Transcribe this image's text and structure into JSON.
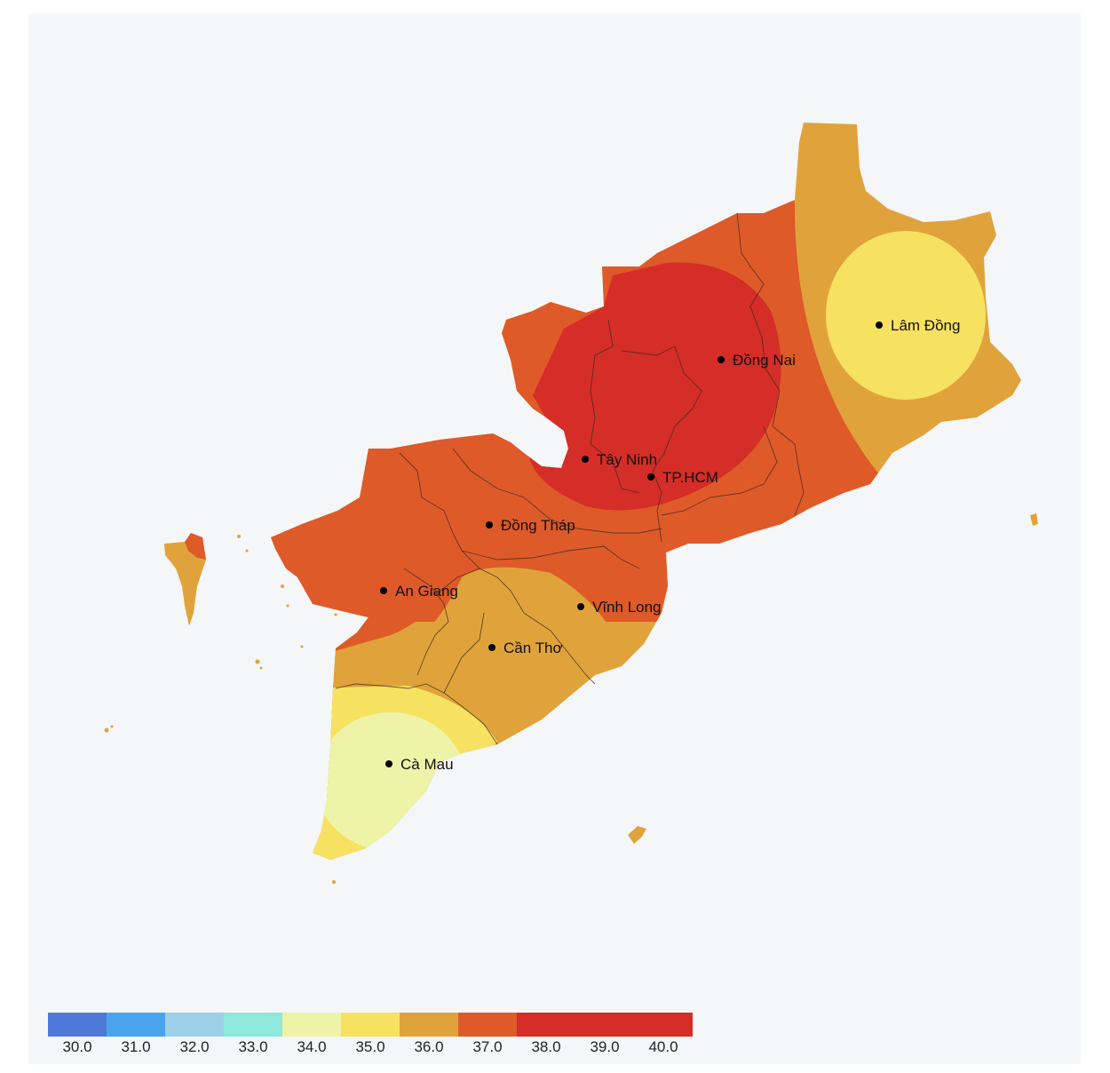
{
  "map": {
    "cities": [
      {
        "id": "lam-dong",
        "name": "Lâm Đồng"
      },
      {
        "id": "dong-nai",
        "name": "Đồng Nai"
      },
      {
        "id": "tay-ninh",
        "name": "Tây Ninh"
      },
      {
        "id": "tphcm",
        "name": "TP.HCM"
      },
      {
        "id": "dong-thap",
        "name": "Đồng Tháp"
      },
      {
        "id": "an-giang",
        "name": "An Giang"
      },
      {
        "id": "vinh-long",
        "name": "Vĩnh Long"
      },
      {
        "id": "can-tho",
        "name": "Cần Thơ"
      },
      {
        "id": "ca-mau",
        "name": "Cà Mau"
      }
    ]
  },
  "legend": {
    "colors": [
      "#4f79d9",
      "#4aa3ef",
      "#9dd0e6",
      "#8ee8dc",
      "#eef3a8",
      "#f7e161",
      "#e0a33b",
      "#de5a29",
      "#d52d27",
      "#d52d27",
      "#d52d27"
    ],
    "ticks": [
      "30.0",
      "31.0",
      "32.0",
      "33.0",
      "34.0",
      "35.0",
      "36.0",
      "37.0",
      "38.0",
      "39.0",
      "40.0"
    ]
  },
  "colors": {
    "c34": "#eef3a8",
    "c35": "#f7e161",
    "c36": "#e0a33b",
    "c37": "#de5a29",
    "c38": "#d52d27",
    "background": "#f4f6f8"
  }
}
